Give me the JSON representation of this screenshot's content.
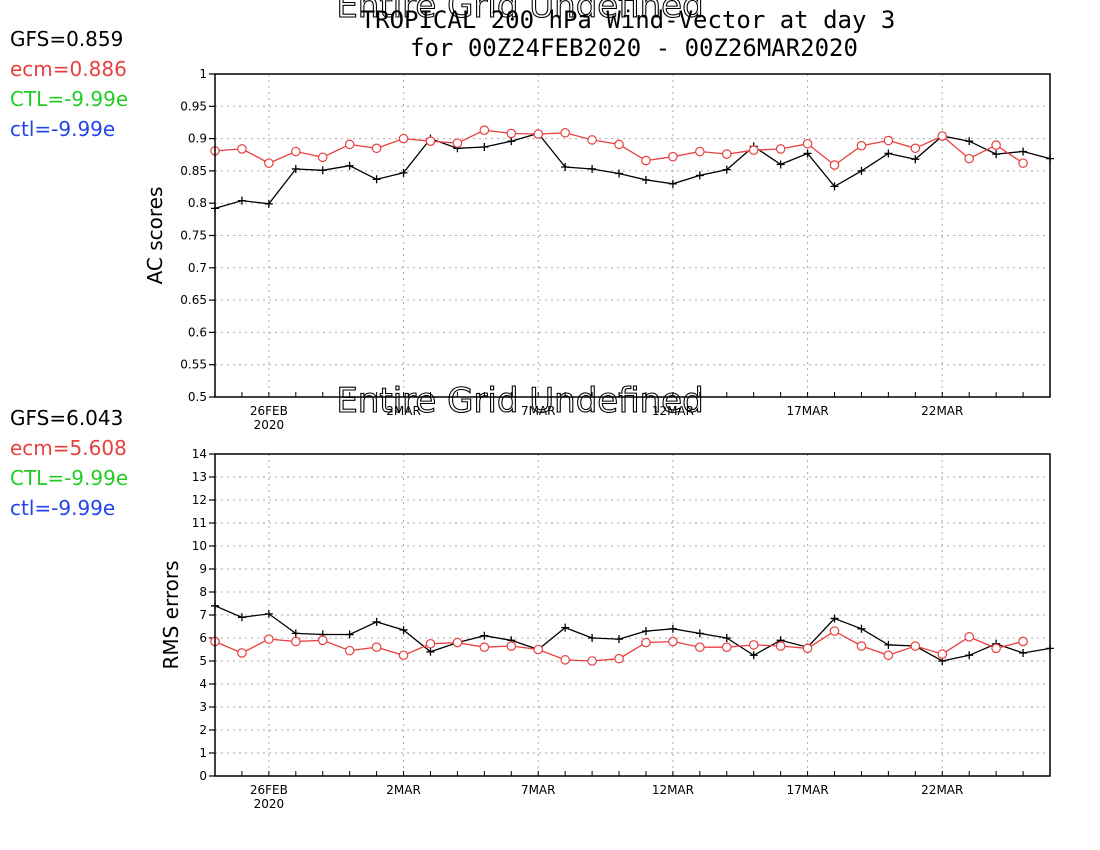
{
  "title": {
    "line1": "TROPICAL 200 hPa Wind-Vector at day 3",
    "line2": "for 00Z24FEB2020 - 00Z26MAR2020"
  },
  "colors": {
    "GFS": "#000000",
    "ecm": "#e8403f",
    "CTL": "#22cc22",
    "ctl": "#2244ee"
  },
  "chart_data": [
    {
      "type": "line",
      "panel": "top",
      "overlay_text": "Entire Grid Undefined",
      "ylabel": "AC scores",
      "xlabel": "",
      "ylim": [
        0.5,
        1
      ],
      "yticks": [
        "0.5",
        "0.55",
        "0.6",
        "0.65",
        "0.7",
        "0.75",
        "0.8",
        "0.85",
        "0.9",
        "0.95",
        "1"
      ],
      "xlim": [
        1,
        32
      ],
      "xticks": [
        {
          "x": 3,
          "label": "26FEB",
          "sub": "2020"
        },
        {
          "x": 8,
          "label": "2MAR",
          "sub": ""
        },
        {
          "x": 13,
          "label": "7MAR",
          "sub": ""
        },
        {
          "x": 18,
          "label": "12MAR",
          "sub": ""
        },
        {
          "x": 23,
          "label": "17MAR",
          "sub": ""
        },
        {
          "x": 28,
          "label": "22MAR",
          "sub": ""
        }
      ],
      "grid": true,
      "stats": [
        {
          "key": "GFS",
          "text": "GFS=0.859"
        },
        {
          "key": "ecm",
          "text": "ecm=0.886"
        },
        {
          "key": "CTL",
          "text": "CTL=-9.99e"
        },
        {
          "key": "ctl",
          "text": "ctl=-9.99e"
        }
      ],
      "series": [
        {
          "key": "GFS",
          "marker": "plus",
          "x": [
            1,
            2,
            3,
            4,
            5,
            6,
            7,
            8,
            9,
            10,
            11,
            12,
            13,
            14,
            15,
            16,
            17,
            18,
            19,
            20,
            21,
            22,
            23,
            24,
            25,
            26,
            27,
            28,
            29,
            30,
            31,
            32
          ],
          "values": [
            0.792,
            0.804,
            0.799,
            0.853,
            0.851,
            0.858,
            0.837,
            0.847,
            0.9,
            0.885,
            0.887,
            0.896,
            0.908,
            0.856,
            0.853,
            0.846,
            0.836,
            0.83,
            0.843,
            0.852,
            0.888,
            0.86,
            0.877,
            0.826,
            0.85,
            0.877,
            0.868,
            0.904,
            0.896,
            0.876,
            0.88,
            0.869
          ]
        },
        {
          "key": "ecm",
          "marker": "circle",
          "x": [
            1,
            2,
            3,
            4,
            5,
            6,
            7,
            8,
            9,
            10,
            11,
            12,
            13,
            14,
            15,
            16,
            17,
            18,
            19,
            20,
            21,
            22,
            23,
            24,
            25,
            26,
            27,
            28,
            29,
            30,
            31
          ],
          "values": [
            0.881,
            0.884,
            0.862,
            0.88,
            0.871,
            0.891,
            0.885,
            0.9,
            0.896,
            0.893,
            0.913,
            0.908,
            0.907,
            0.909,
            0.898,
            0.891,
            0.866,
            0.872,
            0.88,
            0.876,
            0.882,
            0.884,
            0.892,
            0.859,
            0.889,
            0.897,
            0.885,
            0.904,
            0.869,
            0.89,
            0.862
          ]
        }
      ]
    },
    {
      "type": "line",
      "panel": "bottom",
      "overlay_text": "Entire Grid Undefined",
      "ylabel": "RMS errors",
      "xlabel": "",
      "ylim": [
        0,
        14
      ],
      "yticks": [
        "0",
        "1",
        "2",
        "3",
        "4",
        "5",
        "6",
        "7",
        "8",
        "9",
        "10",
        "11",
        "12",
        "13",
        "14"
      ],
      "xlim": [
        1,
        32
      ],
      "xticks": [
        {
          "x": 3,
          "label": "26FEB",
          "sub": "2020"
        },
        {
          "x": 8,
          "label": "2MAR",
          "sub": ""
        },
        {
          "x": 13,
          "label": "7MAR",
          "sub": ""
        },
        {
          "x": 18,
          "label": "12MAR",
          "sub": ""
        },
        {
          "x": 23,
          "label": "17MAR",
          "sub": ""
        },
        {
          "x": 28,
          "label": "22MAR",
          "sub": ""
        }
      ],
      "grid": true,
      "stats": [
        {
          "key": "GFS",
          "text": "GFS=6.043"
        },
        {
          "key": "ecm",
          "text": "ecm=5.608"
        },
        {
          "key": "CTL",
          "text": "CTL=-9.99e"
        },
        {
          "key": "ctl",
          "text": "ctl=-9.99e"
        }
      ],
      "series": [
        {
          "key": "GFS",
          "marker": "plus",
          "x": [
            1,
            2,
            3,
            4,
            5,
            6,
            7,
            8,
            9,
            10,
            11,
            12,
            13,
            14,
            15,
            16,
            17,
            18,
            19,
            20,
            21,
            22,
            23,
            24,
            25,
            26,
            27,
            28,
            29,
            30,
            31,
            32
          ],
          "values": [
            7.4,
            6.9,
            7.05,
            6.2,
            6.15,
            6.15,
            6.7,
            6.35,
            5.4,
            5.8,
            6.1,
            5.9,
            5.5,
            6.45,
            6.0,
            5.95,
            6.3,
            6.4,
            6.2,
            6.0,
            5.25,
            5.9,
            5.6,
            6.85,
            6.4,
            5.7,
            5.65,
            5.0,
            5.25,
            5.75,
            5.35,
            5.55
          ]
        },
        {
          "key": "ecm",
          "marker": "circle",
          "x": [
            1,
            2,
            3,
            4,
            5,
            6,
            7,
            8,
            9,
            10,
            11,
            12,
            13,
            14,
            15,
            16,
            17,
            18,
            19,
            20,
            21,
            22,
            23,
            24,
            25,
            26,
            27,
            28,
            29,
            30,
            31
          ],
          "values": [
            5.85,
            5.35,
            5.95,
            5.85,
            5.9,
            5.45,
            5.6,
            5.25,
            5.75,
            5.8,
            5.6,
            5.65,
            5.5,
            5.05,
            5.0,
            5.1,
            5.8,
            5.85,
            5.6,
            5.6,
            5.7,
            5.65,
            5.55,
            6.3,
            5.65,
            5.25,
            5.65,
            5.3,
            6.05,
            5.55,
            5.85
          ]
        }
      ]
    }
  ]
}
